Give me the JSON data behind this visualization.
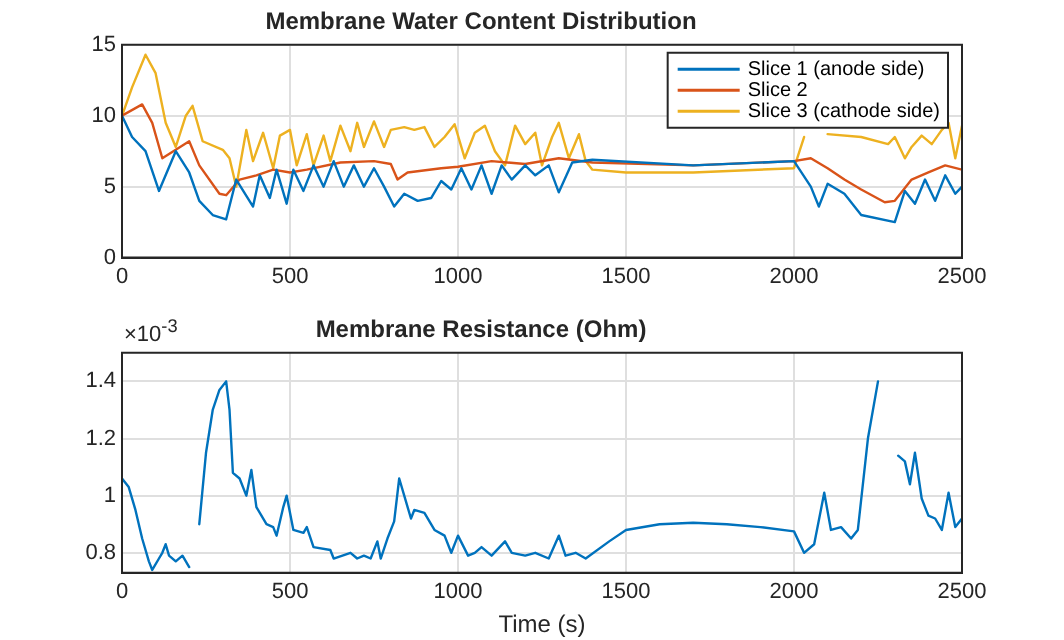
{
  "chart_data": [
    {
      "type": "line",
      "title": "Membrane Water Content Distribution",
      "xlim": [
        0,
        2500
      ],
      "xticks": [
        0,
        500,
        1000,
        1500,
        2000,
        2500
      ],
      "ylim": [
        0,
        15
      ],
      "yticks": [
        0,
        5,
        10,
        15
      ],
      "grid": true,
      "legend": "top right",
      "marker": "none",
      "line_style": "solid",
      "series": [
        {
          "name": "Slice 1 (anode side)",
          "color": "#0072bd",
          "x": [
            0,
            30,
            70,
            110,
            160,
            200,
            230,
            270,
            310,
            340,
            390,
            410,
            440,
            460,
            490,
            510,
            540,
            570,
            600,
            630,
            660,
            690,
            720,
            750,
            780,
            810,
            840,
            880,
            920,
            950,
            980,
            1010,
            1040,
            1070,
            1100,
            1130,
            1160,
            1200,
            1230,
            1270,
            1300,
            1340,
            1400,
            1700,
            2000,
            2050,
            2074,
            2100,
            2150,
            2200,
            2300,
            2330,
            2360,
            2390,
            2420,
            2450,
            2480,
            2500
          ],
          "values": [
            10,
            8.5,
            7.5,
            4.7,
            7.5,
            6,
            4,
            3,
            2.7,
            5.5,
            3.6,
            5.8,
            4.2,
            6.2,
            3.8,
            6.2,
            4.7,
            6.5,
            5,
            6.8,
            5,
            6.5,
            5,
            6.3,
            5,
            3.6,
            4.5,
            4,
            4.2,
            5.4,
            4.8,
            6.3,
            4.8,
            6.5,
            4.5,
            6.5,
            5.5,
            6.5,
            5.8,
            6.5,
            4.6,
            6.7,
            6.9,
            6.5,
            6.8,
            5,
            3.6,
            5.2,
            4.5,
            3,
            2.5,
            4.7,
            3.8,
            5.5,
            4,
            5.8,
            4.5,
            5
          ]
        },
        {
          "name": "Slice 2",
          "color": "#d95319",
          "x": [
            0,
            60,
            90,
            120,
            200,
            230,
            290,
            310,
            350,
            400,
            450,
            500,
            550,
            650,
            750,
            800,
            820,
            850,
            950,
            1000,
            1100,
            1200,
            1300,
            1400,
            1700,
            2000,
            2050,
            2100,
            2150,
            2200,
            2270,
            2300,
            2350,
            2400,
            2450,
            2500
          ],
          "values": [
            10,
            10.8,
            9.5,
            7,
            8.2,
            6.5,
            4.5,
            4.4,
            5.5,
            5.8,
            6.2,
            6,
            6.2,
            6.7,
            6.8,
            6.6,
            5.5,
            6,
            6.3,
            6.4,
            6.8,
            6.6,
            7,
            6.7,
            6.5,
            6.8,
            7,
            6.3,
            5.5,
            4.8,
            3.9,
            4,
            5.5,
            6,
            6.5,
            6.2
          ]
        },
        {
          "name": "Slice 3 (cathode side)",
          "color": "#edb120",
          "x": [
            0,
            30,
            70,
            100,
            130,
            160,
            190,
            210,
            240,
            300,
            320,
            340,
            370,
            390,
            420,
            450,
            470,
            500,
            520,
            550,
            570,
            600,
            620,
            650,
            680,
            700,
            720,
            750,
            780,
            800,
            840,
            870,
            900,
            930,
            960,
            990,
            1020,
            1050,
            1080,
            1110,
            1140,
            1170,
            1200,
            1230,
            1250,
            1280,
            1300,
            1330,
            1360,
            1380,
            1400,
            1500,
            1700,
            2000,
            2030,
            2060,
            2080,
            2100,
            2200,
            2280,
            2300,
            2330,
            2350,
            2380,
            2410,
            2440,
            2460,
            2480,
            2500
          ],
          "values": [
            10,
            12,
            14.3,
            13,
            9.5,
            7.8,
            10,
            10.7,
            8.2,
            7.6,
            7,
            5,
            9,
            6.8,
            8.8,
            6.3,
            8.6,
            9,
            6.5,
            8.7,
            6.5,
            8.6,
            6.8,
            9.3,
            7.5,
            9.5,
            7.8,
            9.6,
            7.8,
            9,
            9.2,
            9,
            9.2,
            7.8,
            8.5,
            9.4,
            7,
            8.8,
            9.3,
            7.5,
            6.5,
            9.3,
            8,
            8.8,
            6.5,
            8.5,
            9.5,
            7,
            8.7,
            6.8,
            6.2,
            6,
            6,
            6.3,
            8.5,
            null,
            null,
            8.7,
            8.5,
            8,
            8.5,
            7,
            7.8,
            8.6,
            8,
            9,
            9.5,
            7,
            9.3
          ]
        }
      ]
    },
    {
      "type": "line",
      "title": "Membrane Resistance (Ohm)",
      "xlabel": "Time (s)",
      "annotations": [
        "×10$^{-3}$"
      ],
      "xlim": [
        0,
        2500
      ],
      "xticks": [
        0,
        500,
        1000,
        1500,
        2000,
        2500
      ],
      "ylim": [
        0.73,
        1.5
      ],
      "yticks": [
        0.8,
        1,
        1.2,
        1.4
      ],
      "grid": true,
      "marker": "none",
      "line_style": "solid",
      "series": [
        {
          "color": "#0072bd",
          "x": [
            0,
            20,
            40,
            60,
            80,
            90,
            110,
            120,
            130,
            140,
            160,
            180,
            200,
            210,
            230,
            250,
            270,
            290,
            310,
            320,
            330,
            350,
            370,
            385,
            400,
            430,
            450,
            460,
            480,
            490,
            510,
            540,
            550,
            570,
            620,
            630,
            680,
            700,
            720,
            740,
            760,
            770,
            790,
            810,
            825,
            840,
            860,
            870,
            900,
            930,
            960,
            980,
            1000,
            1030,
            1050,
            1070,
            1100,
            1140,
            1160,
            1200,
            1230,
            1270,
            1300,
            1320,
            1350,
            1380,
            1450,
            1500,
            1600,
            1700,
            1800,
            1900,
            2000,
            2030,
            2060,
            2090,
            2110,
            2140,
            2170,
            2190,
            2220,
            2250,
            2280,
            2290,
            2310,
            2330,
            2345,
            2360,
            2380,
            2400,
            2420,
            2440,
            2460,
            2480,
            2500
          ],
          "values": [
            1.06,
            1.03,
            0.95,
            0.85,
            0.77,
            0.74,
            0.78,
            0.8,
            0.83,
            0.79,
            0.77,
            0.79,
            0.75,
            null,
            0.9,
            1.15,
            1.3,
            1.37,
            1.4,
            1.3,
            1.08,
            1.06,
            1,
            1.09,
            0.96,
            0.9,
            0.89,
            0.86,
            0.96,
            1,
            0.88,
            0.87,
            0.89,
            0.82,
            0.81,
            0.78,
            0.8,
            0.78,
            0.79,
            0.78,
            0.84,
            0.78,
            0.85,
            0.91,
            1.06,
            1,
            0.92,
            0.95,
            0.94,
            0.88,
            0.86,
            0.8,
            0.86,
            0.79,
            0.8,
            0.82,
            0.79,
            0.84,
            0.8,
            0.79,
            0.8,
            0.78,
            0.86,
            0.79,
            0.8,
            0.78,
            0.84,
            0.88,
            0.9,
            0.905,
            0.9,
            0.89,
            0.875,
            0.8,
            0.83,
            1.01,
            0.88,
            0.89,
            0.85,
            0.88,
            1.2,
            1.4,
            null,
            null,
            1.14,
            1.12,
            1.04,
            1.15,
            0.99,
            0.93,
            0.92,
            0.88,
            1.01,
            0.89,
            0.92
          ]
        }
      ]
    }
  ]
}
